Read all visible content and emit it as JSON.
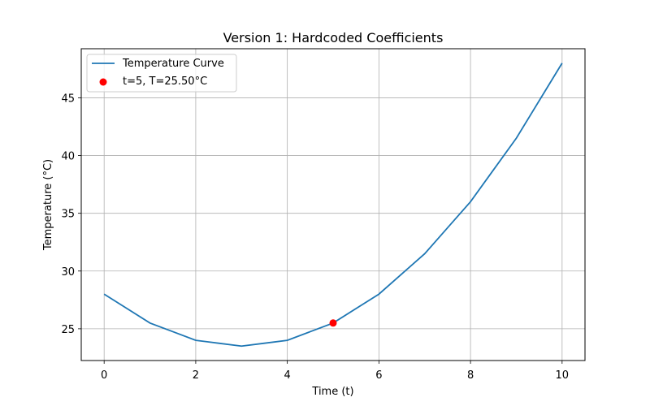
{
  "chart_data": {
    "type": "line",
    "title": "Version 1: Hardcoded Coefficients",
    "xlabel": "Time (t)",
    "ylabel": "Temperature (°C)",
    "xlim": [
      -0.5,
      10.5
    ],
    "ylim": [
      22.25,
      49.25
    ],
    "xticks": [
      0,
      2,
      4,
      6,
      8,
      10
    ],
    "yticks": [
      25,
      30,
      35,
      40,
      45
    ],
    "xtick_labels": [
      "0",
      "2",
      "4",
      "6",
      "8",
      "10"
    ],
    "ytick_labels": [
      "25",
      "30",
      "35",
      "40",
      "45"
    ],
    "grid": true,
    "legend_position": "top-left",
    "series": [
      {
        "name": "Temperature Curve",
        "kind": "line",
        "color": "#1f77b4",
        "x": [
          0,
          0.5,
          1,
          1.5,
          2,
          2.5,
          3,
          3.5,
          4,
          4.5,
          5,
          5.5,
          6,
          6.5,
          7,
          7.5,
          8,
          8.5,
          9,
          9.5,
          10
        ],
        "y": [
          28,
          26.75,
          25.5,
          24.75,
          24,
          23.75,
          23.5,
          23.75,
          24,
          24.75,
          25.5,
          26.75,
          28,
          29.75,
          31.5,
          33.75,
          36,
          38.75,
          41.5,
          44.75,
          48
        ]
      },
      {
        "name": "t=5, T=25.50°C",
        "kind": "scatter",
        "color": "#ff0000",
        "x": [
          5
        ],
        "y": [
          25.5
        ]
      }
    ]
  }
}
